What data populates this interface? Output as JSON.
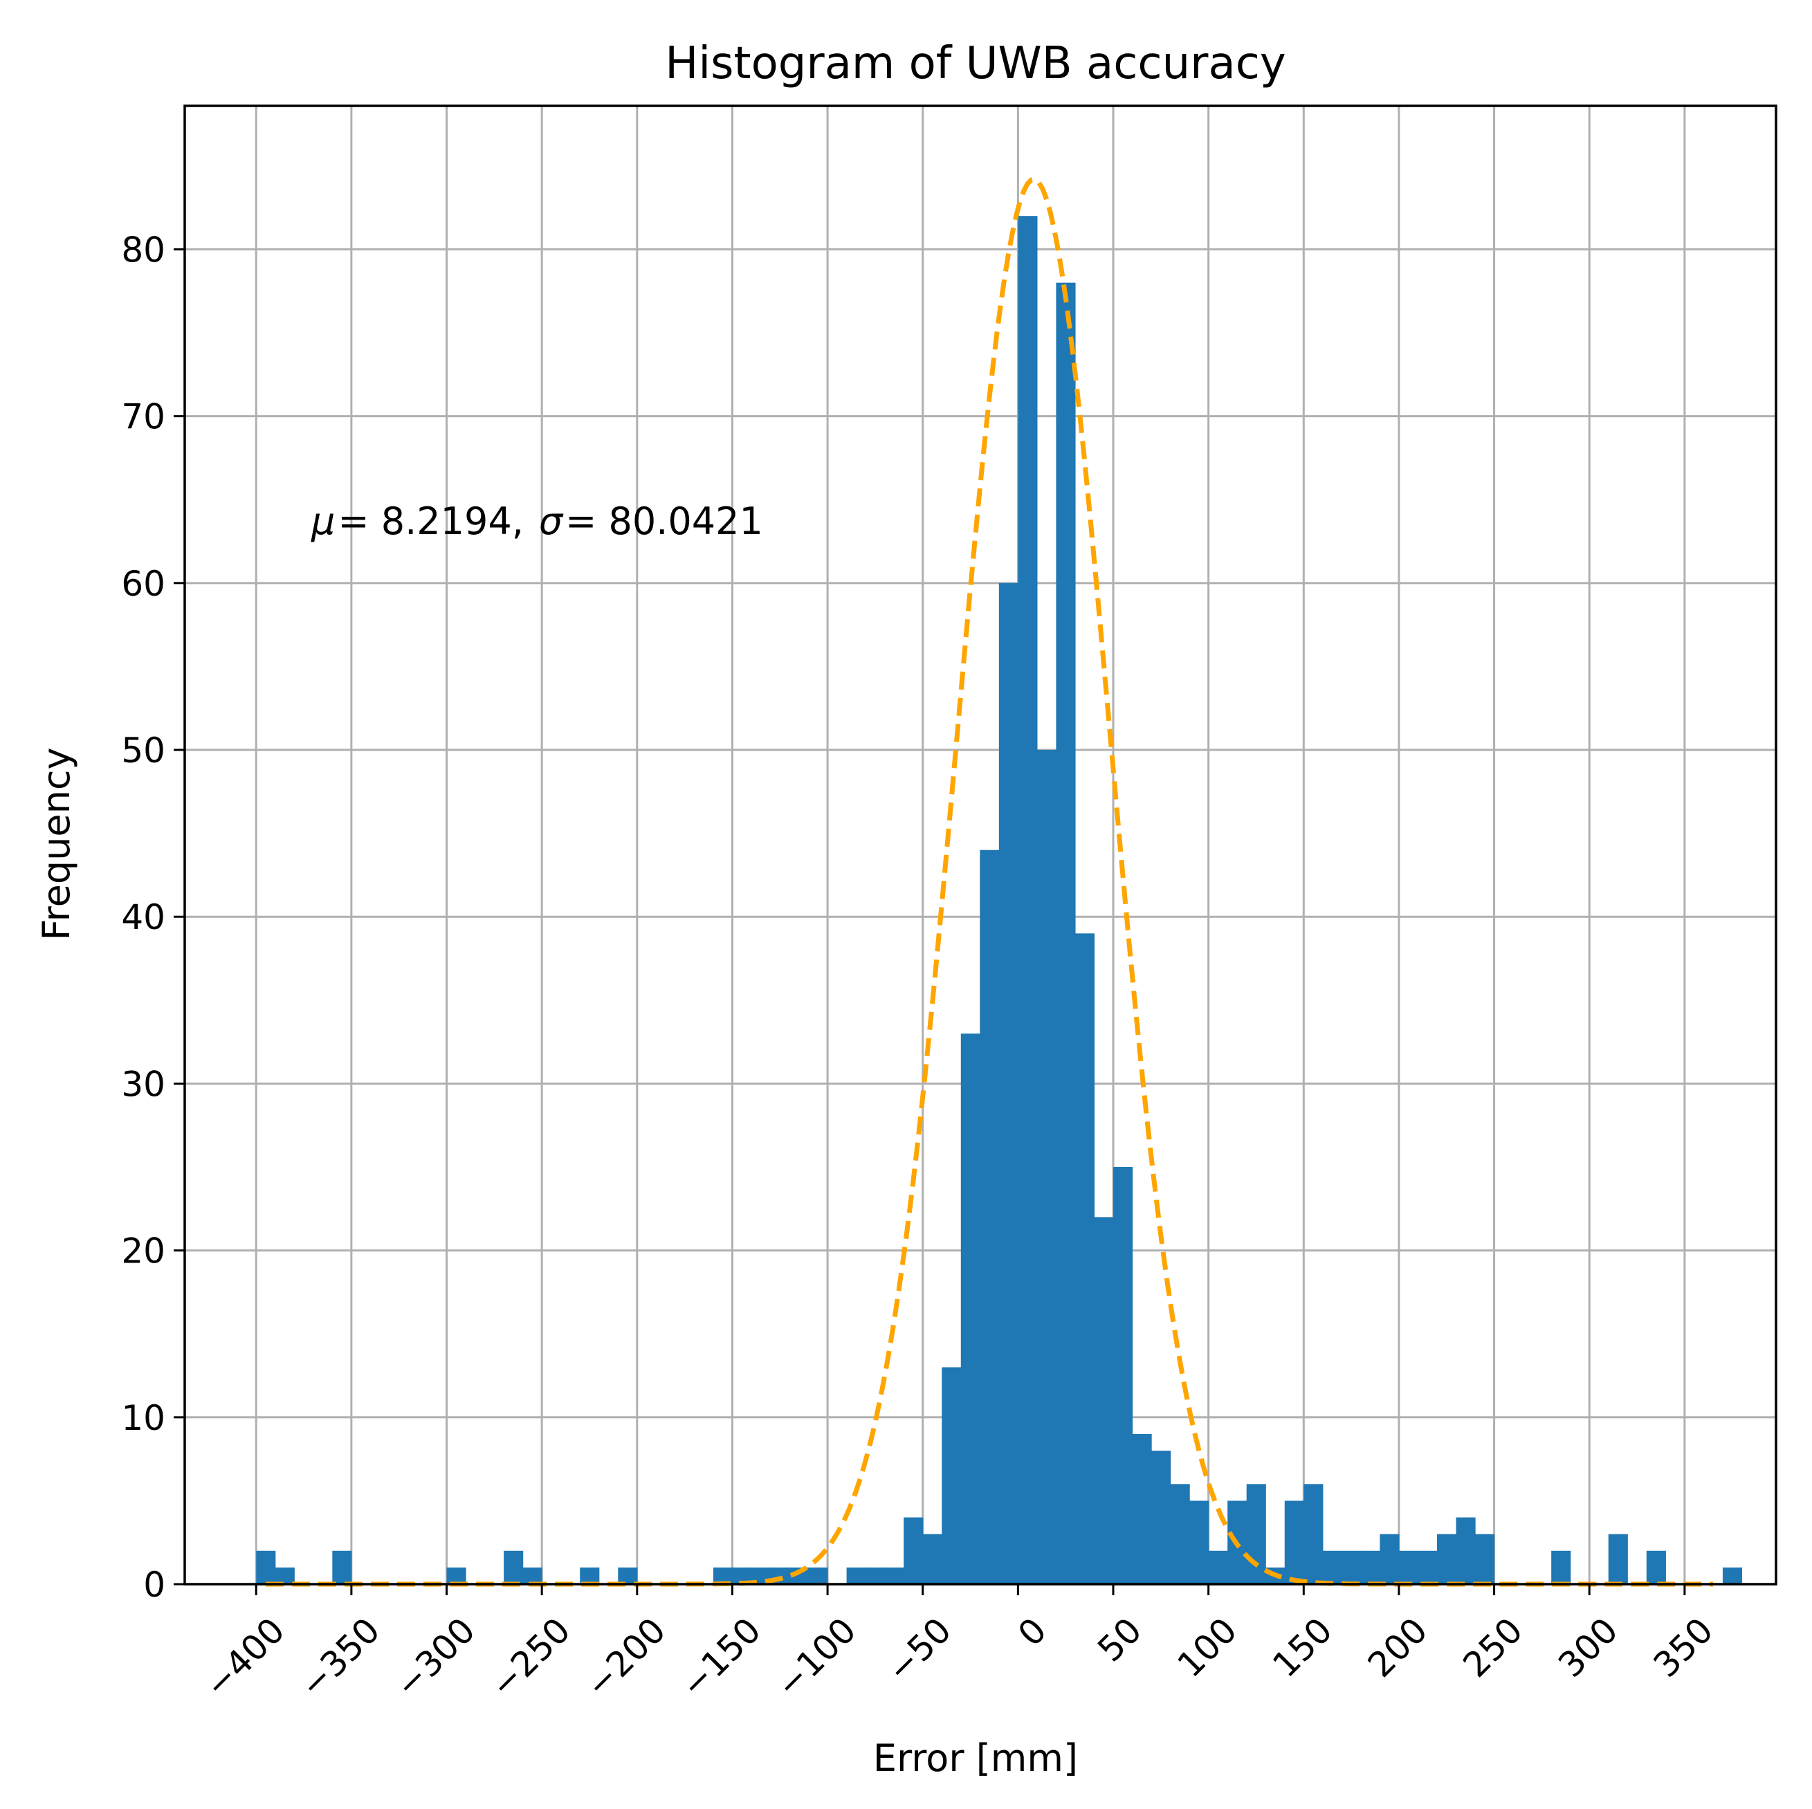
{
  "chart_data": {
    "type": "bar",
    "title": "Histogram of UWB accuracy",
    "xlabel": "Error [mm]",
    "ylabel": "Frequency",
    "annotation": {
      "mu_symbol": "μ",
      "mu_value": "= 8.2194,",
      "sigma_symbol": "σ",
      "sigma_value": "= 80.0421"
    },
    "xlim": [
      -437.5,
      398
    ],
    "ylim": [
      0,
      88.6
    ],
    "grid": true,
    "x_ticks": [
      -400,
      -350,
      -300,
      -250,
      -200,
      -150,
      -100,
      -50,
      0,
      50,
      100,
      150,
      200,
      250,
      300,
      350
    ],
    "x_tick_labels": [
      "−400",
      "−350",
      "−300",
      "−250",
      "−200",
      "−150",
      "−100",
      "−50",
      "0",
      "50",
      "100",
      "150",
      "200",
      "250",
      "300",
      "350"
    ],
    "y_ticks": [
      0,
      10,
      20,
      30,
      40,
      50,
      60,
      70,
      80
    ],
    "y_tick_labels": [
      "0",
      "10",
      "20",
      "30",
      "40",
      "50",
      "60",
      "70",
      "80"
    ],
    "bin_width": 10,
    "bin_start": -400,
    "counts": [
      2,
      1,
      0,
      0,
      2,
      0,
      0,
      0,
      0,
      0,
      1,
      0,
      0,
      2,
      1,
      0,
      0,
      1,
      0,
      1,
      0,
      0,
      0,
      0,
      1,
      1,
      1,
      1,
      1,
      1,
      0,
      1,
      1,
      1,
      4,
      3,
      13,
      33,
      44,
      60,
      82,
      50,
      78,
      39,
      22,
      25,
      9,
      8,
      6,
      5,
      2,
      5,
      6,
      1,
      5,
      6,
      2,
      2,
      2,
      3,
      2,
      2,
      3,
      4,
      3,
      0,
      0,
      0,
      2,
      0,
      0,
      3,
      0,
      2,
      0,
      0,
      0,
      1
    ],
    "bar_color": "#1f77b4",
    "fit_curve": {
      "type": "normal-pdf",
      "style": "dashed",
      "color": "#ffa500",
      "mu": 8.2194,
      "sigma": 80.0421,
      "peak": 84.2,
      "x_range": [
        -395,
        365
      ]
    }
  }
}
